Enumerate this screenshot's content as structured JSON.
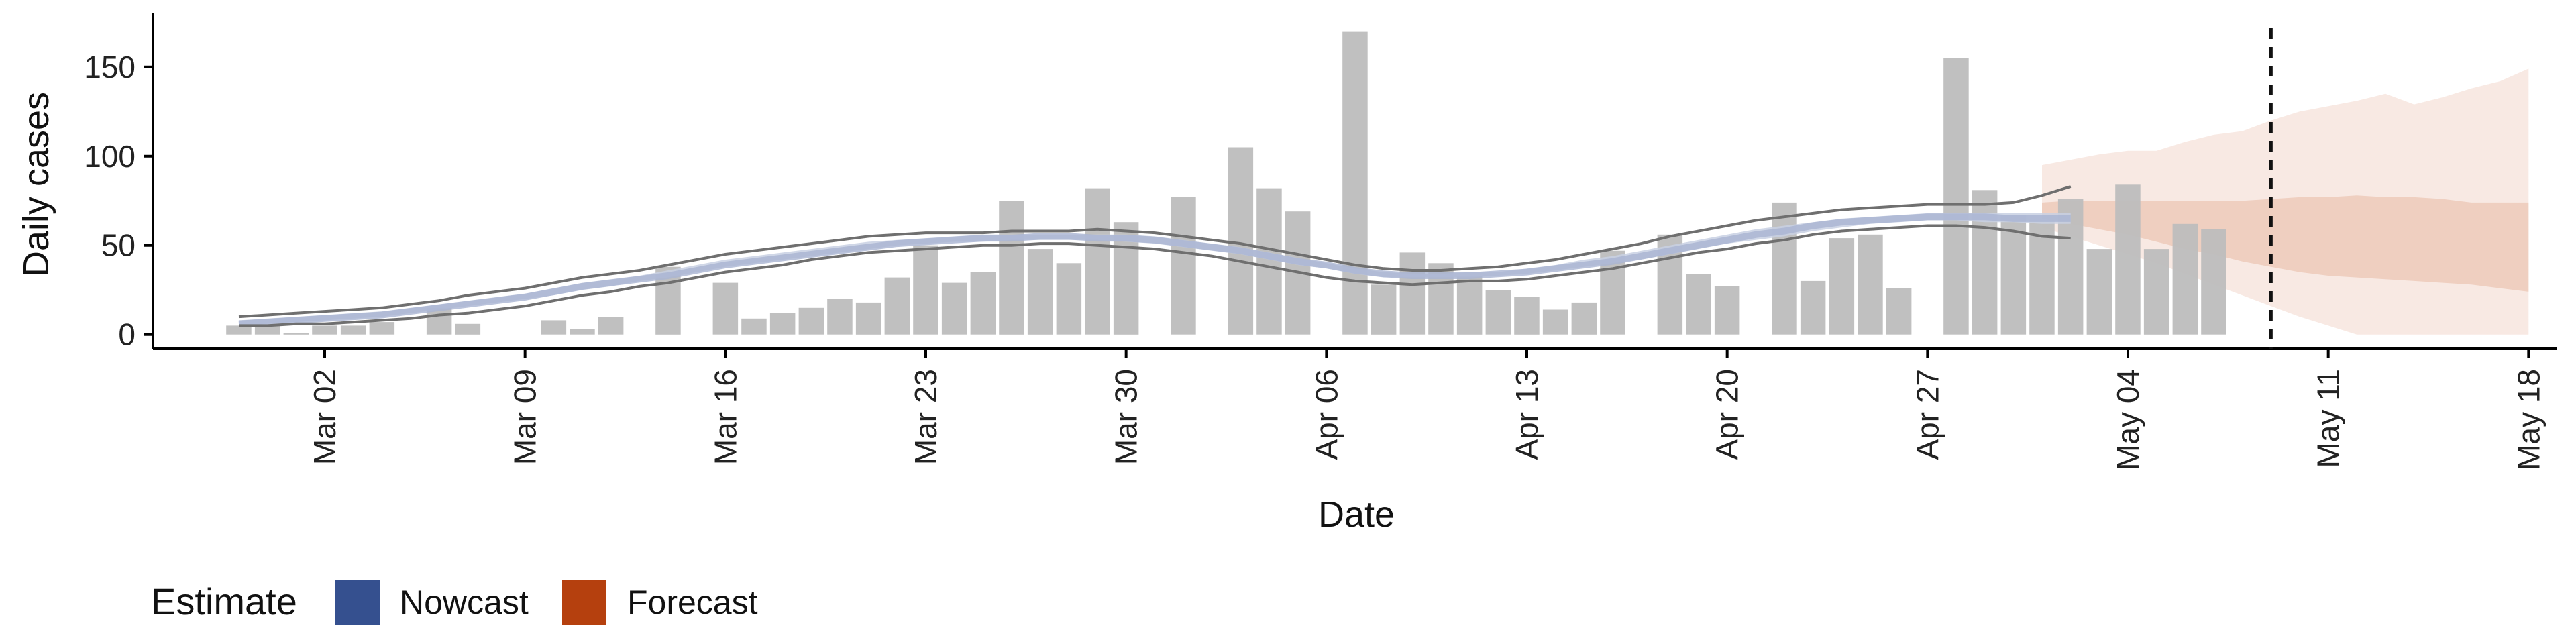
{
  "chart_data": {
    "type": "bar",
    "title": "",
    "xlabel": "Date",
    "ylabel": "Daily cases",
    "x_start_date": "2020-02-28",
    "x_range": [
      "2020-02-25",
      "2020-05-19"
    ],
    "ylim": [
      -8,
      180
    ],
    "y_ticks": [
      0,
      50,
      100,
      150
    ],
    "x_ticks": [
      {
        "date": "2020-03-02",
        "label": "Mar 02"
      },
      {
        "date": "2020-03-09",
        "label": "Mar 09"
      },
      {
        "date": "2020-03-16",
        "label": "Mar 16"
      },
      {
        "date": "2020-03-23",
        "label": "Mar 23"
      },
      {
        "date": "2020-03-30",
        "label": "Mar 30"
      },
      {
        "date": "2020-04-06",
        "label": "Apr 06"
      },
      {
        "date": "2020-04-13",
        "label": "Apr 13"
      },
      {
        "date": "2020-04-20",
        "label": "Apr 20"
      },
      {
        "date": "2020-04-27",
        "label": "Apr 27"
      },
      {
        "date": "2020-05-04",
        "label": "May 04"
      },
      {
        "date": "2020-05-11",
        "label": "May 11"
      },
      {
        "date": "2020-05-18",
        "label": "May 18"
      }
    ],
    "observed_cases": [
      5,
      5,
      1,
      5,
      5,
      7,
      0,
      15,
      6,
      0,
      0,
      8,
      3,
      10,
      0,
      38,
      0,
      29,
      9,
      12,
      15,
      20,
      18,
      32,
      50,
      29,
      35,
      75,
      48,
      40,
      82,
      63,
      0,
      77,
      0,
      105,
      82,
      69,
      0,
      170,
      28,
      46,
      40,
      33,
      25,
      21,
      14,
      18,
      47,
      0,
      56,
      34,
      27,
      0,
      74,
      30,
      54,
      56,
      26,
      0,
      155,
      81,
      67,
      64,
      76,
      48,
      84,
      48,
      62,
      59
    ],
    "forecast_start_date": "2020-04-30",
    "estimate_date": "2020-05-09",
    "nowcast": {
      "median": [
        6,
        7,
        8,
        9,
        10,
        11,
        13,
        15,
        17,
        19,
        21,
        24,
        27,
        29,
        31,
        33,
        36,
        39,
        41,
        43,
        45,
        47,
        49,
        51,
        52,
        53,
        54,
        54,
        55,
        55,
        54,
        54,
        53,
        51,
        49,
        47,
        44,
        41,
        39,
        36,
        34,
        33,
        33,
        33,
        34,
        35,
        37,
        39,
        41,
        44,
        47,
        50,
        53,
        56,
        58,
        61,
        63,
        64,
        65,
        66,
        66,
        66,
        65,
        65,
        65
      ],
      "upper90": [
        10,
        11,
        12,
        13,
        14,
        15,
        17,
        19,
        22,
        24,
        26,
        29,
        32,
        34,
        36,
        39,
        42,
        45,
        47,
        49,
        51,
        53,
        55,
        56,
        57,
        57,
        57,
        58,
        58,
        58,
        59,
        58,
        57,
        55,
        53,
        51,
        48,
        45,
        42,
        39,
        37,
        36,
        36,
        37,
        38,
        40,
        42,
        45,
        48,
        51,
        55,
        58,
        61,
        64,
        66,
        68,
        70,
        71,
        72,
        73,
        73,
        73,
        74,
        78,
        83
      ],
      "lower90": [
        5,
        5,
        6,
        6,
        7,
        8,
        9,
        11,
        12,
        14,
        16,
        19,
        22,
        24,
        27,
        29,
        32,
        35,
        37,
        39,
        42,
        44,
        46,
        47,
        48,
        49,
        50,
        50,
        51,
        51,
        50,
        49,
        48,
        46,
        44,
        41,
        38,
        35,
        32,
        30,
        29,
        28,
        29,
        30,
        30,
        31,
        33,
        35,
        37,
        40,
        43,
        46,
        48,
        51,
        53,
        56,
        58,
        59,
        60,
        61,
        61,
        60,
        58,
        55,
        54
      ],
      "upper50": [
        8,
        9,
        10,
        11,
        12,
        13,
        15,
        17,
        19,
        21,
        23,
        26,
        29,
        31,
        33,
        36,
        39,
        42,
        44,
        46,
        48,
        50,
        52,
        53,
        54,
        55,
        56,
        56,
        56,
        56,
        56,
        56,
        55,
        53,
        51,
        49,
        46,
        43,
        40,
        37,
        35,
        34,
        34,
        35,
        35,
        37,
        39,
        42,
        44,
        47,
        50,
        53,
        56,
        59,
        61,
        63,
        65,
        66,
        67,
        68,
        68,
        68,
        68,
        68,
        68
      ],
      "lower50": [
        5,
        6,
        7,
        8,
        9,
        10,
        12,
        14,
        16,
        18,
        20,
        22,
        25,
        27,
        30,
        32,
        35,
        38,
        40,
        42,
        44,
        46,
        48,
        50,
        51,
        52,
        52,
        53,
        53,
        53,
        53,
        52,
        51,
        49,
        47,
        45,
        42,
        39,
        37,
        34,
        32,
        32,
        32,
        32,
        33,
        34,
        36,
        38,
        40,
        42,
        45,
        48,
        51,
        53,
        55,
        58,
        60,
        62,
        63,
        64,
        64,
        63,
        63,
        62,
        62
      ]
    },
    "forecast": {
      "upper90": [
        95,
        98,
        101,
        103,
        103,
        108,
        112,
        114,
        120,
        125,
        128,
        131,
        135,
        129,
        133,
        138,
        142,
        149
      ],
      "lower90": [
        60,
        55,
        50,
        45,
        40,
        34,
        28,
        22,
        16,
        10,
        5,
        0,
        0,
        0,
        0,
        0,
        0,
        0
      ],
      "upper50": [
        74,
        75,
        75,
        75,
        75,
        75,
        75,
        75,
        76,
        77,
        77,
        78,
        77,
        77,
        76,
        74,
        74,
        74
      ],
      "lower50": [
        65,
        62,
        59,
        56,
        52,
        48,
        45,
        41,
        38,
        35,
        33,
        32,
        31,
        30,
        29,
        28,
        26,
        24
      ]
    },
    "legend": {
      "title": "Estimate",
      "placement": "bottom-left",
      "items": [
        {
          "label": "Nowcast",
          "color": "#35508f"
        },
        {
          "label": "Forecast",
          "color": "#b5400e"
        }
      ]
    },
    "colors": {
      "bars": "#bdbdbd",
      "nowcast_band": "#c8d0e3",
      "nowcast_inner": "#a9b4d2",
      "forecast_outer": "#f8e9e3",
      "forecast_inner": "#efcfc0",
      "line": "#6f6f6f",
      "axis": "#000000"
    }
  }
}
